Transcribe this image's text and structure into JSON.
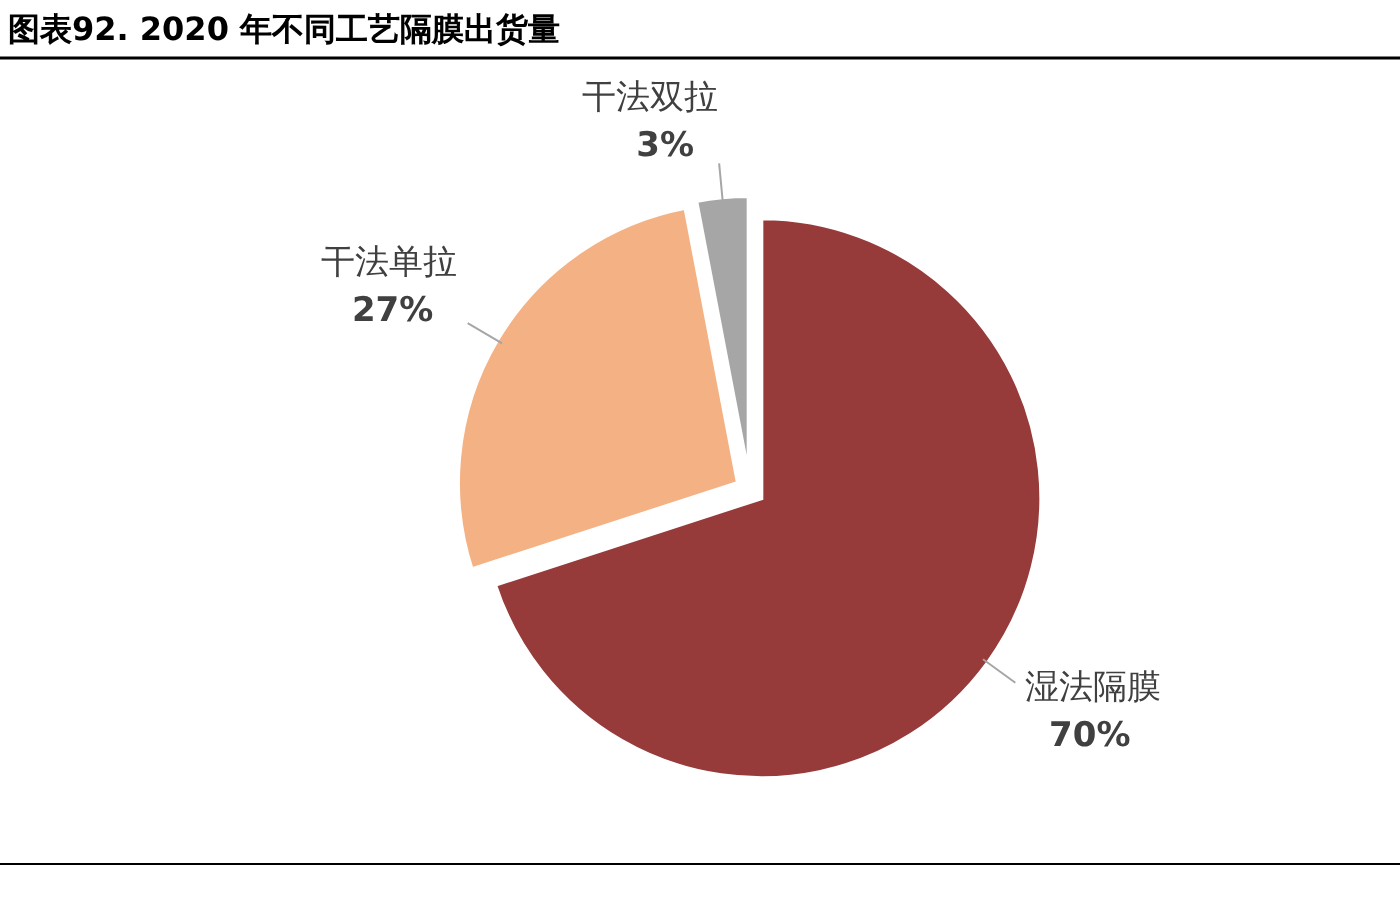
{
  "chart_data": {
    "type": "pie",
    "title": "图表92. 2020 年不同工艺隔膜出货量",
    "categories": [
      "湿法隔膜",
      "干法单拉",
      "干法双拉"
    ],
    "values": [
      70,
      27,
      3
    ],
    "colors": [
      "#963a3a",
      "#f4b183",
      "#a6a6a6"
    ],
    "value_labels": [
      "70%",
      "27%",
      "3%"
    ]
  }
}
